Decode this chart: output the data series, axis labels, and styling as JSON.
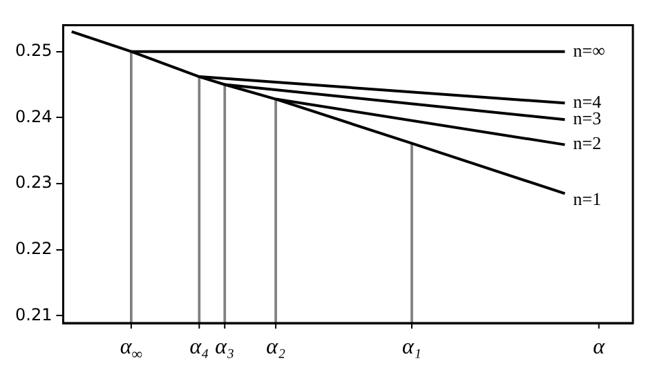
{
  "chart_data": {
    "type": "line",
    "ylim": [
      0.2089,
      0.254
    ],
    "categories": [
      null,
      null,
      null,
      null,
      null,
      null,
      null,
      null,
      "α$_{∞}$",
      null,
      null,
      null,
      null,
      null,
      null,
      null,
      "α₄",
      null,
      null,
      "α₃",
      null,
      null,
      null,
      null,
      null,
      "α₂",
      null,
      null,
      null,
      null,
      null,
      null,
      null,
      null,
      null,
      null,
      null,
      null,
      null,
      null,
      null,
      "α₁",
      null,
      null,
      null,
      null,
      null,
      null,
      null,
      null,
      null,
      null,
      null,
      null,
      null,
      null,
      null,
      null,
      null,
      null,
      null,
      null,
      null,
      "α",
      null,
      null,
      null,
      null
    ],
    "yticks": [
      0.21,
      0.22,
      0.23,
      0.24,
      0.25
    ],
    "grid": false,
    "legend": false,
    "marker": "none",
    "line_style": "solid",
    "series": [
      {
        "type": "bar",
        "color": "#808080",
        "values": [
          null,
          null,
          null,
          null,
          null,
          null,
          null,
          null,
          0.25,
          null,
          null,
          null,
          null,
          null,
          null,
          null,
          0.2462,
          null,
          null,
          0.245,
          null,
          null,
          null,
          null,
          null,
          0.2428,
          null,
          null,
          null,
          null,
          null,
          null,
          null,
          null,
          null,
          null,
          null,
          null,
          null,
          null,
          null,
          0.2361,
          null,
          null,
          null,
          null,
          null,
          null,
          null,
          null,
          null,
          null,
          null,
          null,
          null,
          null,
          null,
          null,
          null,
          null,
          null,
          null,
          null,
          null,
          null,
          null,
          null,
          null
        ]
      },
      {
        "name": "n=1",
        "color": "#000000",
        "values": [
          null,
          0.253,
          null,
          null,
          null,
          null,
          null,
          null,
          0.25,
          null,
          null,
          null,
          null,
          null,
          null,
          null,
          0.2462,
          null,
          null,
          0.245,
          null,
          null,
          null,
          null,
          null,
          0.2428,
          null,
          null,
          null,
          null,
          null,
          null,
          null,
          null,
          null,
          null,
          null,
          null,
          null,
          null,
          null,
          0.2361,
          null,
          null,
          null,
          null,
          null,
          null,
          null,
          null,
          null,
          null,
          null,
          null,
          null,
          null,
          null,
          null,
          null,
          0.2285,
          null,
          null,
          null,
          null,
          null,
          null,
          null,
          null
        ]
      },
      {
        "name": "n=∞",
        "color": "#000000",
        "values": [
          null,
          null,
          null,
          null,
          null,
          null,
          null,
          null,
          0.25,
          null,
          null,
          null,
          null,
          null,
          null,
          null,
          null,
          null,
          null,
          null,
          null,
          null,
          null,
          null,
          null,
          null,
          null,
          null,
          null,
          null,
          null,
          null,
          null,
          null,
          null,
          null,
          null,
          null,
          null,
          null,
          null,
          null,
          null,
          null,
          null,
          null,
          null,
          null,
          null,
          null,
          null,
          null,
          null,
          null,
          null,
          null,
          null,
          null,
          null,
          0.25,
          null,
          null,
          null,
          null,
          null,
          null,
          null,
          null
        ]
      },
      {
        "name": "n=4",
        "color": "#000000",
        "values": [
          null,
          null,
          null,
          null,
          null,
          null,
          null,
          null,
          null,
          null,
          null,
          null,
          null,
          null,
          null,
          null,
          0.2462,
          null,
          null,
          null,
          null,
          null,
          null,
          null,
          null,
          null,
          null,
          null,
          null,
          null,
          null,
          null,
          null,
          null,
          null,
          null,
          null,
          null,
          null,
          null,
          null,
          null,
          null,
          null,
          null,
          null,
          null,
          null,
          null,
          null,
          null,
          null,
          null,
          null,
          null,
          null,
          null,
          null,
          null,
          0.2422,
          null,
          null,
          null,
          null,
          null,
          null,
          null,
          null
        ]
      },
      {
        "name": "n=3",
        "color": "#000000",
        "values": [
          null,
          null,
          null,
          null,
          null,
          null,
          null,
          null,
          null,
          null,
          null,
          null,
          null,
          null,
          null,
          null,
          null,
          null,
          null,
          0.245,
          null,
          null,
          null,
          null,
          null,
          null,
          null,
          null,
          null,
          null,
          null,
          null,
          null,
          null,
          null,
          null,
          null,
          null,
          null,
          null,
          null,
          null,
          null,
          null,
          null,
          null,
          null,
          null,
          null,
          null,
          null,
          null,
          null,
          null,
          null,
          null,
          null,
          null,
          null,
          0.2397,
          null,
          null,
          null,
          null,
          null,
          null,
          null,
          null
        ]
      },
      {
        "name": "n=2",
        "color": "#000000",
        "values": [
          null,
          null,
          null,
          null,
          null,
          null,
          null,
          null,
          null,
          null,
          null,
          null,
          null,
          null,
          null,
          null,
          null,
          null,
          null,
          null,
          null,
          null,
          null,
          null,
          null,
          0.2428,
          null,
          null,
          null,
          null,
          null,
          null,
          null,
          null,
          null,
          null,
          null,
          null,
          null,
          null,
          null,
          null,
          null,
          null,
          null,
          null,
          null,
          null,
          null,
          null,
          null,
          null,
          null,
          null,
          null,
          null,
          null,
          null,
          null,
          0.2359,
          null,
          null,
          null,
          null,
          null,
          null,
          null,
          null
        ]
      }
    ]
  }
}
